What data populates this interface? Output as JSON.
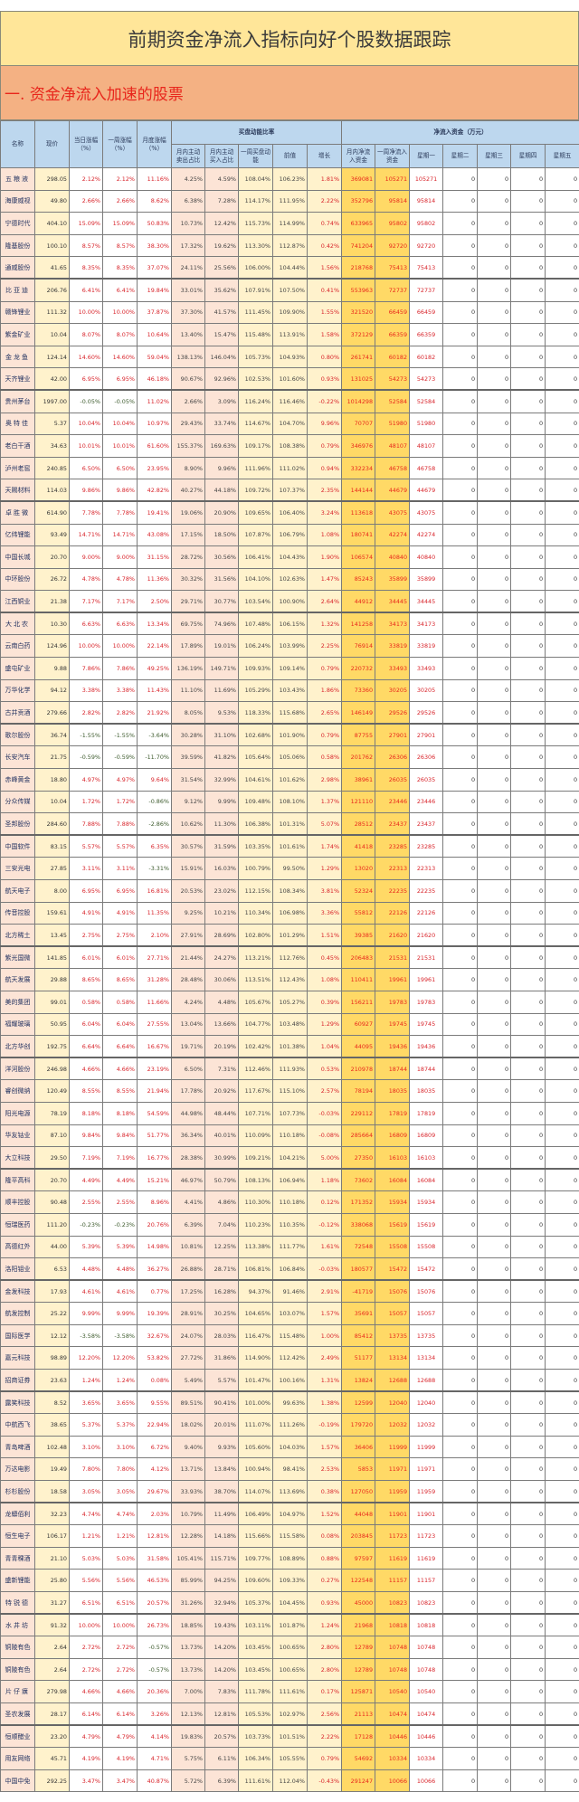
{
  "title": "前期资金净流入指标向好个股数据跟踪",
  "section": "一. 资金净流入加速的股票",
  "headers": {
    "name": "名称",
    "price": "现价",
    "day": "当日涨幅（%）",
    "week": "一周涨幅（%）",
    "month": "月度涨幅（%）",
    "group1": "买盘动能比率",
    "sell": "月内主动卖出占比",
    "buy": "月内主动买入占比",
    "momentum": "一周买盘动能",
    "prior": "前值",
    "growth": "增长",
    "group2": "净流入资金（万元）",
    "month_net": "月内净流入资金",
    "week_net": "一周净流入资金",
    "mon": "星期一",
    "tue": "星期二",
    "wed": "星期三",
    "thu": "星期四",
    "fri": "星期五"
  },
  "rows": [
    [
      "五粮液",
      "298.05",
      "2.12%",
      "2.12%",
      "11.16%",
      "4.25%",
      "4.59%",
      "108.04%",
      "106.23%",
      "1.81%",
      "369081",
      "105271",
      "105271",
      "0",
      "0",
      "0",
      "0"
    ],
    [
      "海康威视",
      "49.80",
      "2.66%",
      "2.66%",
      "8.62%",
      "6.38%",
      "7.28%",
      "114.17%",
      "111.95%",
      "2.22%",
      "352796",
      "95814",
      "95814",
      "0",
      "0",
      "0",
      "0"
    ],
    [
      "宁德时代",
      "404.10",
      "15.09%",
      "15.09%",
      "50.83%",
      "10.73%",
      "12.42%",
      "115.73%",
      "114.99%",
      "0.74%",
      "633965",
      "95802",
      "95802",
      "0",
      "0",
      "0",
      "0"
    ],
    [
      "隆基股份",
      "100.10",
      "8.57%",
      "8.57%",
      "38.30%",
      "17.32%",
      "19.62%",
      "113.30%",
      "112.87%",
      "0.42%",
      "741204",
      "92720",
      "92720",
      "0",
      "0",
      "0",
      "0"
    ],
    [
      "通威股份",
      "41.65",
      "8.35%",
      "8.35%",
      "37.07%",
      "24.11%",
      "25.56%",
      "106.00%",
      "104.44%",
      "1.56%",
      "218768",
      "75413",
      "75413",
      "0",
      "0",
      "0",
      "0"
    ],
    [
      "比亚迪",
      "206.76",
      "6.41%",
      "6.41%",
      "19.84%",
      "33.01%",
      "35.62%",
      "107.91%",
      "107.50%",
      "0.41%",
      "553963",
      "72737",
      "72737",
      "0",
      "0",
      "0",
      "0"
    ],
    [
      "赣锋锂业",
      "111.32",
      "10.00%",
      "10.00%",
      "37.87%",
      "37.30%",
      "41.57%",
      "111.45%",
      "109.90%",
      "1.55%",
      "321520",
      "66459",
      "66459",
      "0",
      "0",
      "0",
      "0"
    ],
    [
      "紫金矿业",
      "10.04",
      "8.07%",
      "8.07%",
      "10.64%",
      "13.40%",
      "15.47%",
      "115.48%",
      "113.91%",
      "1.58%",
      "372129",
      "66359",
      "66359",
      "0",
      "0",
      "0",
      "0"
    ],
    [
      "金龙鱼",
      "124.14",
      "14.60%",
      "14.60%",
      "59.04%",
      "138.13%",
      "146.04%",
      "105.73%",
      "104.93%",
      "0.80%",
      "261741",
      "60182",
      "60182",
      "0",
      "0",
      "0",
      "0"
    ],
    [
      "天齐锂业",
      "42.00",
      "6.95%",
      "6.95%",
      "46.18%",
      "90.67%",
      "92.96%",
      "102.53%",
      "101.60%",
      "0.93%",
      "131025",
      "54273",
      "54273",
      "0",
      "0",
      "0",
      "0"
    ],
    [
      "贵州茅台",
      "1997.00",
      "-0.05%",
      "-0.05%",
      "11.02%",
      "2.66%",
      "3.09%",
      "116.24%",
      "116.46%",
      "-0.22%",
      "1014298",
      "52584",
      "52584",
      "0",
      "0",
      "0",
      "0"
    ],
    [
      "奥特佳",
      "5.37",
      "10.04%",
      "10.04%",
      "10.97%",
      "29.43%",
      "33.74%",
      "114.67%",
      "104.70%",
      "9.96%",
      "70707",
      "51980",
      "51980",
      "0",
      "0",
      "0",
      "0"
    ],
    [
      "老白干酒",
      "34.63",
      "10.01%",
      "10.01%",
      "61.60%",
      "155.37%",
      "169.63%",
      "109.17%",
      "108.38%",
      "0.79%",
      "346976",
      "48107",
      "48107",
      "0",
      "0",
      "0",
      "0"
    ],
    [
      "泸州老窖",
      "240.85",
      "6.50%",
      "6.50%",
      "23.95%",
      "8.90%",
      "9.96%",
      "111.96%",
      "111.02%",
      "0.94%",
      "332234",
      "46758",
      "46758",
      "0",
      "0",
      "0",
      "0"
    ],
    [
      "天赐材料",
      "114.03",
      "9.86%",
      "9.86%",
      "42.82%",
      "40.27%",
      "44.18%",
      "109.72%",
      "107.37%",
      "2.35%",
      "144144",
      "44679",
      "44679",
      "0",
      "0",
      "0",
      "0"
    ],
    [
      "卓胜微",
      "614.90",
      "7.78%",
      "7.78%",
      "19.41%",
      "19.06%",
      "20.90%",
      "109.65%",
      "106.40%",
      "3.24%",
      "113618",
      "43075",
      "43075",
      "0",
      "0",
      "0",
      "0"
    ],
    [
      "亿纬锂能",
      "93.49",
      "14.71%",
      "14.71%",
      "43.08%",
      "17.15%",
      "18.50%",
      "107.87%",
      "106.79%",
      "1.08%",
      "180741",
      "42274",
      "42274",
      "0",
      "0",
      "0",
      "0"
    ],
    [
      "中国长城",
      "20.70",
      "9.00%",
      "9.00%",
      "31.15%",
      "28.72%",
      "30.56%",
      "106.41%",
      "104.43%",
      "1.90%",
      "106574",
      "40840",
      "40840",
      "0",
      "0",
      "0",
      "0"
    ],
    [
      "中环股份",
      "26.72",
      "4.78%",
      "4.78%",
      "11.36%",
      "30.32%",
      "31.56%",
      "104.10%",
      "102.63%",
      "1.47%",
      "85243",
      "35899",
      "35899",
      "0",
      "0",
      "0",
      "0"
    ],
    [
      "江西铜业",
      "21.38",
      "7.17%",
      "7.17%",
      "2.50%",
      "29.71%",
      "30.77%",
      "103.54%",
      "100.90%",
      "2.64%",
      "44912",
      "34445",
      "34445",
      "0",
      "0",
      "0",
      "0"
    ],
    [
      "大北农",
      "10.30",
      "6.63%",
      "6.63%",
      "13.34%",
      "69.75%",
      "74.96%",
      "107.48%",
      "106.15%",
      "1.32%",
      "141258",
      "34173",
      "34173",
      "0",
      "0",
      "0",
      "0"
    ],
    [
      "云南白药",
      "124.96",
      "10.00%",
      "10.00%",
      "22.14%",
      "17.89%",
      "19.01%",
      "106.24%",
      "103.99%",
      "2.25%",
      "76914",
      "33819",
      "33819",
      "0",
      "0",
      "0",
      "0"
    ],
    [
      "盛屯矿业",
      "9.88",
      "7.86%",
      "7.86%",
      "49.25%",
      "136.19%",
      "149.71%",
      "109.93%",
      "109.14%",
      "0.79%",
      "220732",
      "33493",
      "33493",
      "0",
      "0",
      "0",
      "0"
    ],
    [
      "万华化学",
      "94.12",
      "3.38%",
      "3.38%",
      "11.43%",
      "11.10%",
      "11.69%",
      "105.29%",
      "103.43%",
      "1.86%",
      "73360",
      "30205",
      "30205",
      "0",
      "0",
      "0",
      "0"
    ],
    [
      "古井贡酒",
      "279.66",
      "2.82%",
      "2.82%",
      "21.92%",
      "8.05%",
      "9.53%",
      "118.33%",
      "115.68%",
      "2.65%",
      "146149",
      "29526",
      "29526",
      "0",
      "0",
      "0",
      "0"
    ],
    [
      "歌尔股份",
      "36.74",
      "-1.55%",
      "-1.55%",
      "-3.64%",
      "30.28%",
      "31.10%",
      "102.68%",
      "101.90%",
      "0.79%",
      "87755",
      "27901",
      "27901",
      "0",
      "0",
      "0",
      "0"
    ],
    [
      "长安汽车",
      "21.75",
      "-0.59%",
      "-0.59%",
      "-11.70%",
      "39.59%",
      "41.82%",
      "105.64%",
      "105.06%",
      "0.58%",
      "201762",
      "26306",
      "26306",
      "0",
      "0",
      "0",
      "0"
    ],
    [
      "赤峰黄金",
      "18.80",
      "4.97%",
      "4.97%",
      "9.64%",
      "31.54%",
      "32.99%",
      "104.61%",
      "101.62%",
      "2.98%",
      "38961",
      "26035",
      "26035",
      "0",
      "0",
      "0",
      "0"
    ],
    [
      "分众传媒",
      "10.04",
      "1.72%",
      "1.72%",
      "-0.86%",
      "9.12%",
      "9.99%",
      "109.48%",
      "108.10%",
      "1.37%",
      "121110",
      "23446",
      "23446",
      "0",
      "0",
      "0",
      "0"
    ],
    [
      "圣邦股份",
      "284.60",
      "7.88%",
      "7.88%",
      "-2.86%",
      "10.62%",
      "11.30%",
      "106.38%",
      "101.31%",
      "5.07%",
      "28512",
      "23437",
      "23437",
      "0",
      "0",
      "0",
      "0"
    ],
    [
      "中国软件",
      "83.15",
      "5.57%",
      "5.57%",
      "6.35%",
      "30.57%",
      "31.59%",
      "103.35%",
      "101.61%",
      "1.74%",
      "41418",
      "23285",
      "23285",
      "0",
      "0",
      "0",
      "0"
    ],
    [
      "三安光电",
      "27.85",
      "3.11%",
      "3.11%",
      "-3.31%",
      "15.91%",
      "16.03%",
      "100.79%",
      "99.50%",
      "1.29%",
      "13020",
      "22313",
      "22313",
      "0",
      "0",
      "0",
      "0"
    ],
    [
      "航天电子",
      "8.00",
      "6.95%",
      "6.95%",
      "16.81%",
      "20.53%",
      "23.02%",
      "112.15%",
      "108.34%",
      "3.81%",
      "52324",
      "22235",
      "22235",
      "0",
      "0",
      "0",
      "0"
    ],
    [
      "传音控股",
      "159.61",
      "4.91%",
      "4.91%",
      "11.35%",
      "9.25%",
      "10.21%",
      "110.34%",
      "106.98%",
      "3.36%",
      "55812",
      "22126",
      "22126",
      "0",
      "0",
      "0",
      "0"
    ],
    [
      "北方稀土",
      "13.45",
      "2.75%",
      "2.75%",
      "2.10%",
      "27.91%",
      "28.69%",
      "102.80%",
      "101.29%",
      "1.51%",
      "39385",
      "21620",
      "21620",
      "0",
      "0",
      "0",
      "0"
    ],
    [
      "紫光国微",
      "141.85",
      "6.01%",
      "6.01%",
      "27.71%",
      "21.44%",
      "24.27%",
      "113.21%",
      "112.76%",
      "0.45%",
      "206483",
      "21531",
      "21531",
      "0",
      "0",
      "0",
      "0"
    ],
    [
      "航天发展",
      "29.88",
      "8.65%",
      "8.65%",
      "31.28%",
      "28.48%",
      "30.06%",
      "113.51%",
      "112.43%",
      "1.08%",
      "110411",
      "19961",
      "19961",
      "0",
      "0",
      "0",
      "0"
    ],
    [
      "美的集团",
      "99.01",
      "0.58%",
      "0.58%",
      "11.66%",
      "4.24%",
      "4.48%",
      "105.67%",
      "105.27%",
      "0.39%",
      "156211",
      "19783",
      "19783",
      "0",
      "0",
      "0",
      "0"
    ],
    [
      "福耀玻璃",
      "50.95",
      "6.04%",
      "6.04%",
      "27.55%",
      "13.04%",
      "13.66%",
      "104.77%",
      "103.48%",
      "1.29%",
      "60927",
      "19745",
      "19745",
      "0",
      "0",
      "0",
      "0"
    ],
    [
      "北方华创",
      "192.75",
      "6.64%",
      "6.64%",
      "16.67%",
      "19.71%",
      "20.19%",
      "102.42%",
      "101.38%",
      "1.04%",
      "44095",
      "19436",
      "19436",
      "0",
      "0",
      "0",
      "0"
    ],
    [
      "洋河股份",
      "246.98",
      "4.66%",
      "4.66%",
      "23.19%",
      "6.50%",
      "7.31%",
      "112.46%",
      "111.93%",
      "0.53%",
      "210978",
      "18744",
      "18744",
      "0",
      "0",
      "0",
      "0"
    ],
    [
      "睿创微纳",
      "120.49",
      "8.55%",
      "8.55%",
      "21.94%",
      "17.78%",
      "20.92%",
      "117.67%",
      "115.10%",
      "2.57%",
      "78194",
      "18035",
      "18035",
      "0",
      "0",
      "0",
      "0"
    ],
    [
      "阳光电源",
      "78.19",
      "8.18%",
      "8.18%",
      "54.59%",
      "44.98%",
      "48.44%",
      "107.71%",
      "107.73%",
      "-0.03%",
      "229112",
      "17819",
      "17819",
      "0",
      "0",
      "0",
      "0"
    ],
    [
      "华友钴业",
      "87.10",
      "9.84%",
      "9.84%",
      "51.77%",
      "36.34%",
      "40.01%",
      "110.09%",
      "110.18%",
      "-0.08%",
      "285664",
      "16809",
      "16809",
      "0",
      "0",
      "0",
      "0"
    ],
    [
      "大立科技",
      "29.50",
      "7.19%",
      "7.19%",
      "16.77%",
      "28.38%",
      "30.99%",
      "109.21%",
      "104.21%",
      "5.00%",
      "27350",
      "16103",
      "16103",
      "0",
      "0",
      "0",
      "0"
    ],
    [
      "隆平高科",
      "20.70",
      "4.49%",
      "4.49%",
      "15.21%",
      "46.97%",
      "50.79%",
      "108.13%",
      "106.94%",
      "1.18%",
      "73602",
      "16084",
      "16084",
      "0",
      "0",
      "0",
      "0"
    ],
    [
      "顺丰控股",
      "90.48",
      "2.55%",
      "2.55%",
      "8.96%",
      "4.41%",
      "4.86%",
      "110.30%",
      "110.18%",
      "0.12%",
      "171352",
      "15934",
      "15934",
      "0",
      "0",
      "0",
      "0"
    ],
    [
      "恒瑞医药",
      "111.20",
      "-0.23%",
      "-0.23%",
      "20.76%",
      "6.39%",
      "7.04%",
      "110.23%",
      "110.35%",
      "-0.12%",
      "338068",
      "15619",
      "15619",
      "0",
      "0",
      "0",
      "0"
    ],
    [
      "高德红外",
      "44.00",
      "5.39%",
      "5.39%",
      "14.98%",
      "10.81%",
      "12.25%",
      "113.38%",
      "111.77%",
      "1.61%",
      "72548",
      "15508",
      "15508",
      "0",
      "0",
      "0",
      "0"
    ],
    [
      "洛阳钼业",
      "6.53",
      "4.48%",
      "4.48%",
      "36.27%",
      "26.88%",
      "28.71%",
      "106.81%",
      "106.84%",
      "-0.03%",
      "180577",
      "15472",
      "15472",
      "0",
      "0",
      "0",
      "0"
    ],
    [
      "金发科技",
      "17.93",
      "4.61%",
      "4.61%",
      "0.77%",
      "17.25%",
      "16.28%",
      "94.37%",
      "91.46%",
      "2.91%",
      "-41719",
      "15076",
      "15076",
      "0",
      "0",
      "0",
      "0"
    ],
    [
      "航发控制",
      "25.22",
      "9.99%",
      "9.99%",
      "19.39%",
      "28.91%",
      "30.25%",
      "104.65%",
      "103.07%",
      "1.57%",
      "35691",
      "15057",
      "15057",
      "0",
      "0",
      "0",
      "0"
    ],
    [
      "国际医学",
      "12.12",
      "-3.58%",
      "-3.58%",
      "32.67%",
      "24.07%",
      "28.03%",
      "116.47%",
      "115.48%",
      "1.00%",
      "85412",
      "13735",
      "13735",
      "0",
      "0",
      "0",
      "0"
    ],
    [
      "嘉元科技",
      "98.89",
      "12.20%",
      "12.20%",
      "53.82%",
      "27.72%",
      "31.86%",
      "114.90%",
      "112.42%",
      "2.49%",
      "51177",
      "13134",
      "13134",
      "0",
      "0",
      "0",
      "0"
    ],
    [
      "招商证券",
      "23.63",
      "1.24%",
      "1.24%",
      "0.08%",
      "5.49%",
      "5.57%",
      "101.47%",
      "100.16%",
      "1.31%",
      "13824",
      "12688",
      "12688",
      "0",
      "0",
      "0",
      "0"
    ],
    [
      "露笑科技",
      "8.52",
      "3.65%",
      "3.65%",
      "9.55%",
      "89.51%",
      "90.41%",
      "101.00%",
      "99.63%",
      "1.38%",
      "12599",
      "12040",
      "12040",
      "0",
      "0",
      "0",
      "0"
    ],
    [
      "中航西飞",
      "38.65",
      "5.37%",
      "5.37%",
      "22.94%",
      "18.02%",
      "20.01%",
      "111.07%",
      "111.26%",
      "-0.19%",
      "179720",
      "12032",
      "12032",
      "0",
      "0",
      "0",
      "0"
    ],
    [
      "青岛啤酒",
      "102.48",
      "3.10%",
      "3.10%",
      "6.72%",
      "9.40%",
      "9.93%",
      "105.60%",
      "104.03%",
      "1.57%",
      "36406",
      "11999",
      "11999",
      "0",
      "0",
      "0",
      "0"
    ],
    [
      "万达电影",
      "19.49",
      "7.80%",
      "7.80%",
      "4.12%",
      "13.71%",
      "13.84%",
      "100.94%",
      "98.41%",
      "2.53%",
      "5853",
      "11971",
      "11971",
      "0",
      "0",
      "0",
      "0"
    ],
    [
      "杉杉股份",
      "18.58",
      "3.05%",
      "3.05%",
      "29.67%",
      "33.93%",
      "38.70%",
      "114.07%",
      "113.69%",
      "0.38%",
      "127050",
      "11959",
      "11959",
      "0",
      "0",
      "0",
      "0"
    ],
    [
      "龙蟒佰利",
      "32.23",
      "4.74%",
      "4.74%",
      "2.03%",
      "10.79%",
      "11.49%",
      "106.49%",
      "104.97%",
      "1.52%",
      "44048",
      "11901",
      "11901",
      "0",
      "0",
      "0",
      "0"
    ],
    [
      "恒生电子",
      "106.17",
      "1.21%",
      "1.21%",
      "12.81%",
      "12.28%",
      "14.18%",
      "115.66%",
      "115.58%",
      "0.08%",
      "203845",
      "11723",
      "11723",
      "0",
      "0",
      "0",
      "0"
    ],
    [
      "青青稞酒",
      "21.10",
      "5.03%",
      "5.03%",
      "31.58%",
      "105.41%",
      "115.71%",
      "109.77%",
      "108.89%",
      "0.88%",
      "97597",
      "11619",
      "11619",
      "0",
      "0",
      "0",
      "0"
    ],
    [
      "盛新锂能",
      "25.80",
      "5.56%",
      "5.56%",
      "46.53%",
      "85.99%",
      "94.25%",
      "109.60%",
      "109.33%",
      "0.27%",
      "122548",
      "11157",
      "11157",
      "0",
      "0",
      "0",
      "0"
    ],
    [
      "特锐德",
      "31.27",
      "6.51%",
      "6.51%",
      "20.57%",
      "31.26%",
      "32.94%",
      "105.37%",
      "104.45%",
      "0.93%",
      "45000",
      "10823",
      "10823",
      "0",
      "0",
      "0",
      "0"
    ],
    [
      "水井坊",
      "91.32",
      "10.00%",
      "10.00%",
      "26.73%",
      "18.85%",
      "19.43%",
      "103.11%",
      "101.87%",
      "1.24%",
      "21968",
      "10818",
      "10818",
      "0",
      "0",
      "0",
      "0"
    ],
    [
      "铜陵有色",
      "2.64",
      "2.72%",
      "2.72%",
      "-0.57%",
      "13.73%",
      "14.20%",
      "103.45%",
      "100.65%",
      "2.80%",
      "12789",
      "10748",
      "10748",
      "0",
      "0",
      "0",
      "0"
    ],
    [
      "铜陵有色",
      "2.64",
      "2.72%",
      "2.72%",
      "-0.57%",
      "13.73%",
      "14.20%",
      "103.45%",
      "100.65%",
      "2.80%",
      "12789",
      "10748",
      "10748",
      "0",
      "0",
      "0",
      "0"
    ],
    [
      "片仔癀",
      "279.98",
      "4.66%",
      "4.66%",
      "20.36%",
      "7.00%",
      "7.83%",
      "111.78%",
      "111.61%",
      "0.17%",
      "125871",
      "10540",
      "10540",
      "0",
      "0",
      "0",
      "0"
    ],
    [
      "圣农发展",
      "28.17",
      "6.14%",
      "6.14%",
      "3.26%",
      "12.13%",
      "12.81%",
      "105.53%",
      "102.97%",
      "2.56%",
      "21113",
      "10474",
      "10474",
      "0",
      "0",
      "0",
      "0"
    ],
    [
      "恒顺醋业",
      "23.20",
      "4.79%",
      "4.79%",
      "4.14%",
      "19.83%",
      "20.57%",
      "103.73%",
      "101.51%",
      "2.22%",
      "17128",
      "10446",
      "10446",
      "0",
      "0",
      "0",
      "0"
    ],
    [
      "用友网络",
      "45.71",
      "4.19%",
      "4.19%",
      "4.71%",
      "5.75%",
      "6.11%",
      "106.34%",
      "105.55%",
      "0.79%",
      "54692",
      "10334",
      "10334",
      "0",
      "0",
      "0",
      "0"
    ],
    [
      "中国中免",
      "292.25",
      "3.47%",
      "3.47%",
      "40.87%",
      "5.72%",
      "6.39%",
      "111.61%",
      "112.04%",
      "-0.43%",
      "291247",
      "10066",
      "10066",
      "0",
      "0",
      "0",
      "0"
    ]
  ]
}
